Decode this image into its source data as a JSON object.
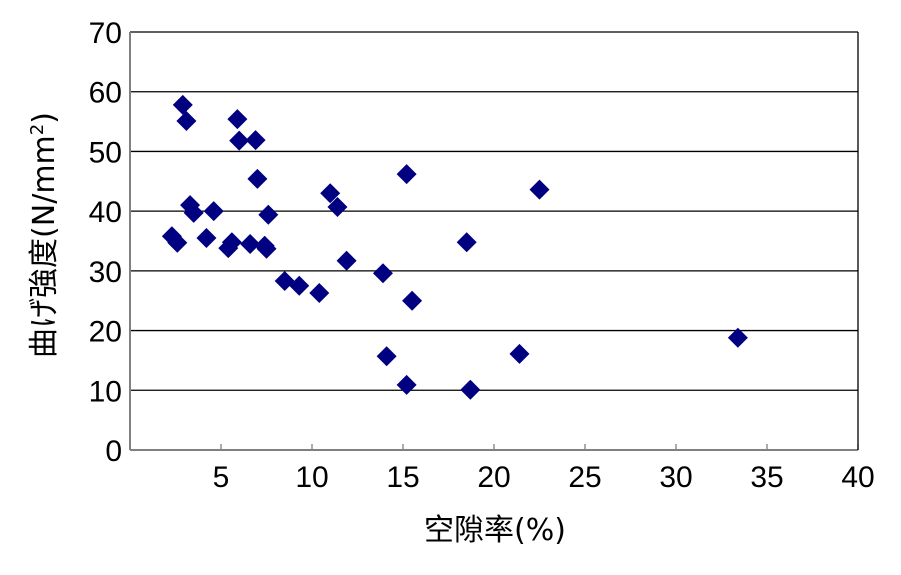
{
  "chart_data": {
    "type": "scatter",
    "xlabel": "空隙率(%)",
    "ylabel": "曲げ強度(N/mm",
    "ylabel_superscript": "2",
    "ylabel_suffix": ")",
    "xlim": [
      0,
      40
    ],
    "ylim": [
      0,
      70
    ],
    "xticks": [
      "5",
      "10",
      "15",
      "20",
      "25",
      "30",
      "35",
      "40"
    ],
    "yticks": [
      "0",
      "10",
      "20",
      "30",
      "40",
      "50",
      "60",
      "70"
    ],
    "grid": "horizontal",
    "legend": "none",
    "marker": "diamond",
    "color": "#000080",
    "points": [
      [
        2.9,
        57.8
      ],
      [
        3.1,
        55.1
      ],
      [
        5.9,
        55.4
      ],
      [
        6.0,
        51.8
      ],
      [
        6.9,
        51.9
      ],
      [
        7.0,
        45.4
      ],
      [
        3.3,
        41.0
      ],
      [
        3.5,
        39.7
      ],
      [
        4.6,
        40.0
      ],
      [
        7.6,
        39.4
      ],
      [
        2.3,
        35.8
      ],
      [
        2.6,
        34.7
      ],
      [
        4.2,
        35.5
      ],
      [
        5.6,
        34.8
      ],
      [
        5.4,
        33.8
      ],
      [
        6.6,
        34.5
      ],
      [
        7.4,
        34.2
      ],
      [
        7.5,
        33.7
      ],
      [
        11.0,
        43.0
      ],
      [
        11.4,
        40.7
      ],
      [
        15.2,
        46.2
      ],
      [
        22.5,
        43.6
      ],
      [
        18.5,
        34.8
      ],
      [
        11.9,
        31.7
      ],
      [
        13.9,
        29.6
      ],
      [
        8.5,
        28.3
      ],
      [
        9.3,
        27.5
      ],
      [
        10.4,
        26.3
      ],
      [
        15.5,
        25.0
      ],
      [
        14.1,
        15.7
      ],
      [
        21.4,
        16.1
      ],
      [
        33.4,
        18.8
      ],
      [
        15.2,
        10.9
      ],
      [
        18.7,
        10.1
      ]
    ]
  }
}
